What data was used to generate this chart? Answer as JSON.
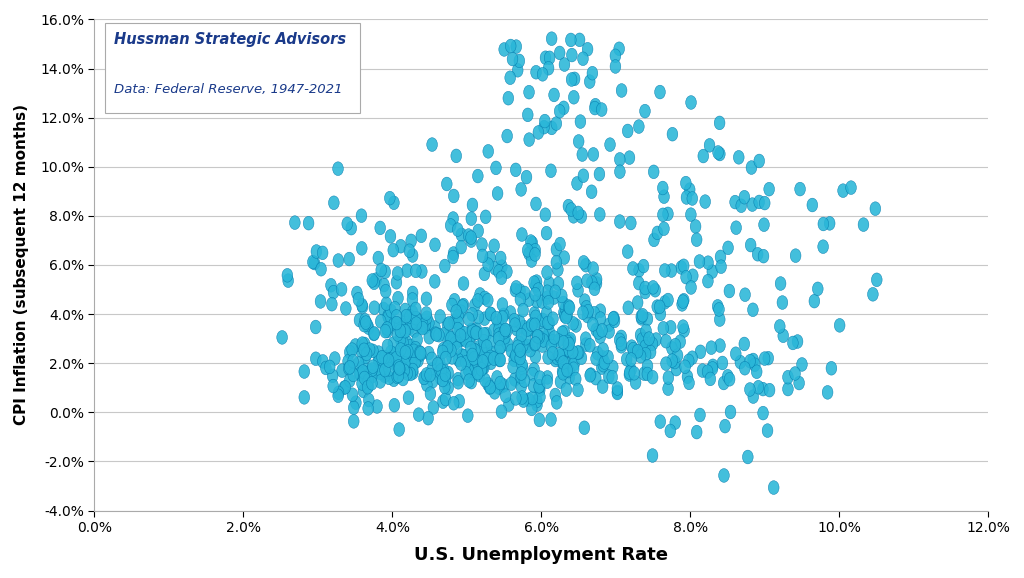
{
  "title_line1": "Hussman Strategic Advisors",
  "title_line2": "Data: Federal Reserve, 1947-2021",
  "xlabel": "U.S. Unemployment Rate",
  "ylabel": "CPI Inflation (subsequent 12 months)",
  "xlim": [
    0.0,
    0.12
  ],
  "ylim": [
    -0.04,
    0.16
  ],
  "xticks": [
    0.0,
    0.02,
    0.04,
    0.06,
    0.08,
    0.1,
    0.12
  ],
  "yticks": [
    -0.04,
    -0.02,
    0.0,
    0.02,
    0.04,
    0.06,
    0.08,
    0.1,
    0.12,
    0.14,
    0.16
  ],
  "dot_color": "#29b6d8",
  "dot_edgecolor": "#0077aa",
  "dot_size": 22,
  "background_color": "#ffffff",
  "grid_color": "#c8c8c8",
  "annotation_color": "#1a3a8a"
}
